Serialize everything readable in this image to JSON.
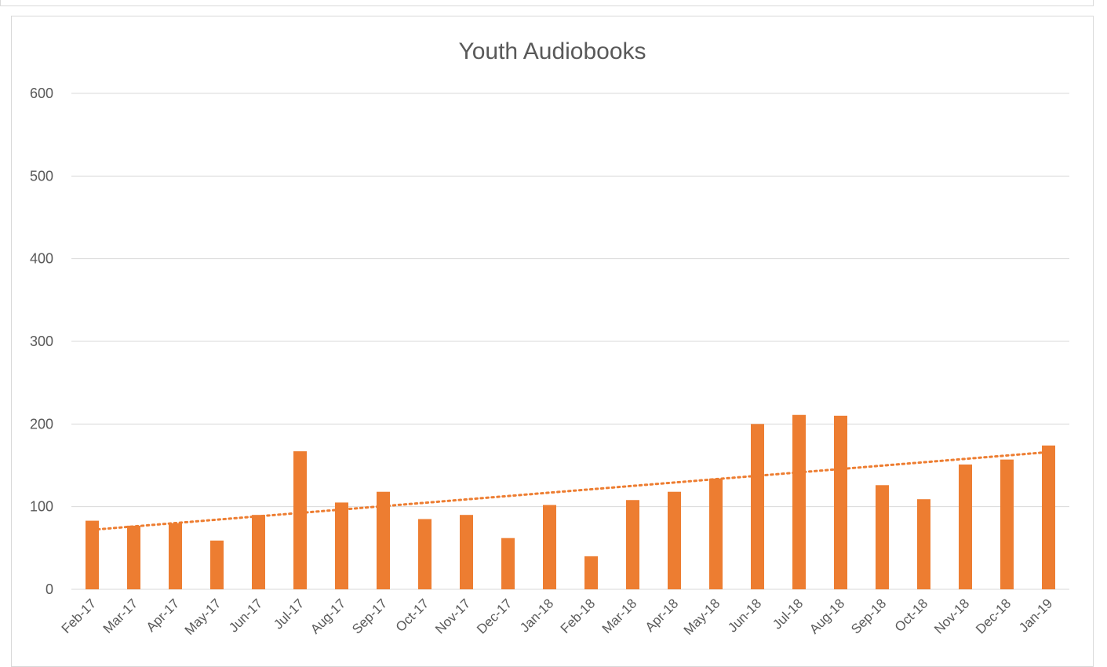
{
  "chart_data": {
    "type": "bar",
    "title": "Youth Audiobooks",
    "xlabel": "",
    "ylabel": "",
    "ylim": [
      0,
      600
    ],
    "yticks": [
      0,
      100,
      200,
      300,
      400,
      500,
      600
    ],
    "grid": true,
    "legend": "none",
    "categories": [
      "Feb-17",
      "Mar-17",
      "Apr-17",
      "May-17",
      "Jun-17",
      "Jul-17",
      "Aug-17",
      "Sep-17",
      "Oct-17",
      "Nov-17",
      "Dec-17",
      "Jan-18",
      "Feb-18",
      "Mar-18",
      "Apr-18",
      "May-18",
      "Jun-18",
      "Jul-18",
      "Aug-18",
      "Sep-18",
      "Oct-18",
      "Nov-18",
      "Dec-18",
      "Jan-19"
    ],
    "values": [
      83,
      77,
      80,
      59,
      90,
      167,
      105,
      118,
      85,
      90,
      62,
      102,
      40,
      108,
      118,
      134,
      200,
      211,
      210,
      126,
      109,
      151,
      157,
      174
    ],
    "trendline": {
      "type": "linear",
      "style": "dotted",
      "start": 72,
      "end": 166
    },
    "colors": {
      "bar": "#ed7d31",
      "trendline": "#ed7d31",
      "grid": "#d9d9d9",
      "text": "#595959"
    }
  }
}
